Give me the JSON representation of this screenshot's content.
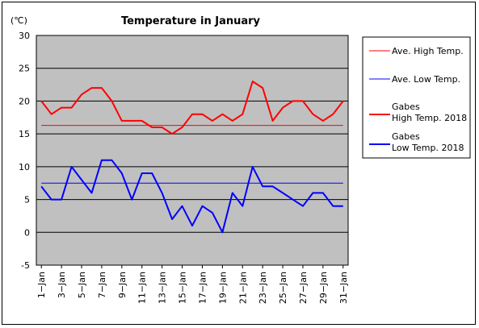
{
  "chart_data": {
    "type": "line",
    "title": "Temperature in January",
    "ylabel": "(℃)",
    "xlabel": "",
    "ylim": [
      -5,
      30
    ],
    "yticks": [
      -5,
      0,
      5,
      10,
      15,
      20,
      25,
      30
    ],
    "grid": true,
    "legend_position": "right",
    "plot_background": "#c0c0c0",
    "x": [
      "1-Jan",
      "2-Jan",
      "3-Jan",
      "4-Jan",
      "5-Jan",
      "6-Jan",
      "7-Jan",
      "8-Jan",
      "9-Jan",
      "10-Jan",
      "11-Jan",
      "12-Jan",
      "13-Jan",
      "14-Jan",
      "15-Jan",
      "16-Jan",
      "17-Jan",
      "18-Jan",
      "19-Jan",
      "20-Jan",
      "21-Jan",
      "22-Jan",
      "23-Jan",
      "24-Jan",
      "25-Jan",
      "26-Jan",
      "27-Jan",
      "28-Jan",
      "29-Jan",
      "30-Jan",
      "31-Jan"
    ],
    "xtick_labels": [
      "1−Jan",
      "3−Jan",
      "5−Jan",
      "7−Jan",
      "9−Jan",
      "11−Jan",
      "13−Jan",
      "15−Jan",
      "17−Jan",
      "19−Jan",
      "21−Jan",
      "23−Jan",
      "25−Jan",
      "27−Jan",
      "29−Jan",
      "31−Jan"
    ],
    "series": [
      {
        "name": "Ave. High Temp.",
        "color": "#ff0000",
        "style": "thin",
        "values": [
          16.3,
          16.3,
          16.3,
          16.3,
          16.3,
          16.3,
          16.3,
          16.3,
          16.3,
          16.3,
          16.3,
          16.3,
          16.3,
          16.3,
          16.3,
          16.3,
          16.3,
          16.3,
          16.3,
          16.3,
          16.3,
          16.3,
          16.3,
          16.3,
          16.3,
          16.3,
          16.3,
          16.3,
          16.3,
          16.3,
          16.3
        ]
      },
      {
        "name": "Ave. Low Temp.",
        "color": "#0000ff",
        "style": "thin",
        "values": [
          7.5,
          7.5,
          7.5,
          7.5,
          7.5,
          7.5,
          7.5,
          7.5,
          7.5,
          7.5,
          7.5,
          7.5,
          7.5,
          7.5,
          7.5,
          7.5,
          7.5,
          7.5,
          7.5,
          7.5,
          7.5,
          7.5,
          7.5,
          7.5,
          7.5,
          7.5,
          7.5,
          7.5,
          7.5,
          7.5,
          7.5
        ]
      },
      {
        "name": "Gabes High Temp. 2018",
        "color": "#ff0000",
        "style": "thick",
        "values": [
          20,
          18,
          19,
          19,
          21,
          22,
          22,
          20,
          17,
          17,
          17,
          16,
          16,
          15,
          16,
          18,
          18,
          17,
          18,
          17,
          18,
          23,
          22,
          17,
          19,
          20,
          20,
          18,
          17,
          18,
          20
        ]
      },
      {
        "name": "Gabes Low Temp. 2018",
        "color": "#0000ff",
        "style": "thick",
        "values": [
          7,
          5,
          5,
          10,
          8,
          6,
          11,
          11,
          9,
          5,
          9,
          9,
          6,
          2,
          4,
          1,
          4,
          3,
          0,
          6,
          4,
          10,
          7,
          7,
          6,
          5,
          4,
          6,
          6,
          4,
          4
        ]
      }
    ],
    "legend_label_lines": [
      [
        "Ave. High Temp."
      ],
      [
        "Ave. Low Temp."
      ],
      [
        "Gabes",
        "High Temp. 2018"
      ],
      [
        "Gabes",
        "Low Temp. 2018"
      ]
    ]
  }
}
